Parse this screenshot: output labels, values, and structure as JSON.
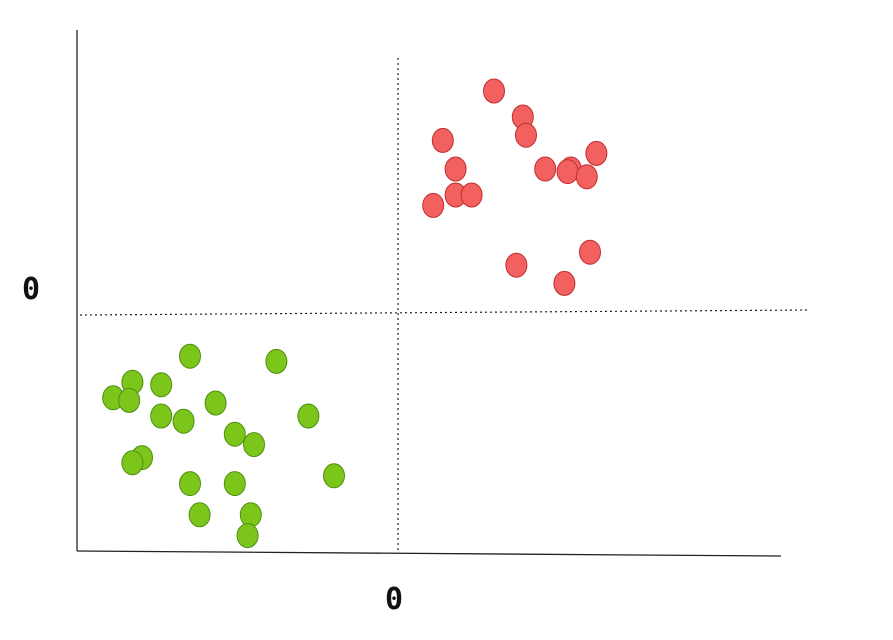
{
  "chart_data": {
    "type": "scatter",
    "title": "",
    "xlabel": "",
    "ylabel": "",
    "xlim": [
      -1,
      1
    ],
    "ylim": [
      -1,
      1
    ],
    "x_tick_label": "0",
    "y_tick_label": "0",
    "reference_lines": {
      "vertical_at": 0,
      "horizontal_at": 0,
      "style": "dotted"
    },
    "grid": false,
    "legend": "none",
    "series": [
      {
        "color": "#f26060",
        "stroke": "#c03030",
        "points": [
          [
            0.3,
            0.85
          ],
          [
            0.39,
            0.75
          ],
          [
            0.4,
            0.68
          ],
          [
            0.14,
            0.66
          ],
          [
            0.18,
            0.55
          ],
          [
            0.46,
            0.55
          ],
          [
            0.54,
            0.55
          ],
          [
            0.53,
            0.54
          ],
          [
            0.62,
            0.61
          ],
          [
            0.59,
            0.52
          ],
          [
            0.18,
            0.45
          ],
          [
            0.23,
            0.45
          ],
          [
            0.11,
            0.41
          ],
          [
            0.37,
            0.18
          ],
          [
            0.6,
            0.23
          ],
          [
            0.52,
            0.11
          ]
        ]
      },
      {
        "color": "#7cc61c",
        "stroke": "#4e8f10",
        "points": [
          [
            -0.65,
            -0.17
          ],
          [
            -0.38,
            -0.19
          ],
          [
            -0.83,
            -0.27
          ],
          [
            -0.74,
            -0.28
          ],
          [
            -0.89,
            -0.33
          ],
          [
            -0.84,
            -0.34
          ],
          [
            -0.57,
            -0.35
          ],
          [
            -0.74,
            -0.4
          ],
          [
            -0.67,
            -0.42
          ],
          [
            -0.28,
            -0.4
          ],
          [
            -0.51,
            -0.47
          ],
          [
            -0.45,
            -0.51
          ],
          [
            -0.8,
            -0.56
          ],
          [
            -0.83,
            -0.58
          ],
          [
            -0.2,
            -0.63
          ],
          [
            -0.65,
            -0.66
          ],
          [
            -0.51,
            -0.66
          ],
          [
            -0.62,
            -0.78
          ],
          [
            -0.46,
            -0.78
          ],
          [
            -0.47,
            -0.86
          ]
        ]
      }
    ]
  }
}
